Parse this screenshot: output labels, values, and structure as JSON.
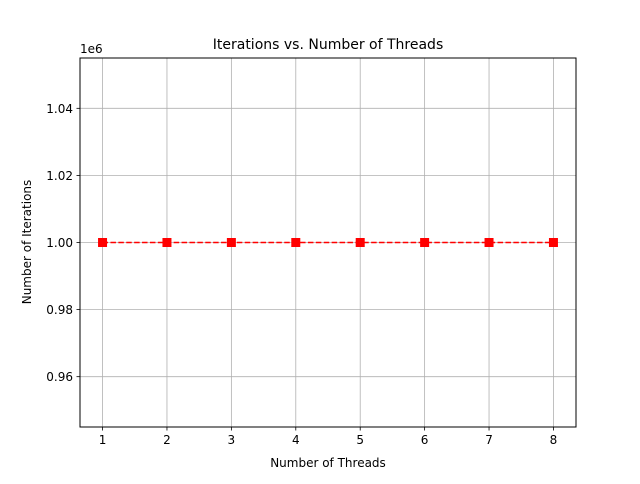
{
  "chart_data": {
    "type": "line",
    "title": "Iterations vs. Number of Threads",
    "xlabel": "Number of Threads",
    "ylabel": "Number of Iterations",
    "y_offset_label": "1e6",
    "x": [
      1,
      2,
      3,
      4,
      5,
      6,
      7,
      8
    ],
    "xlim": [
      0.65,
      8.35
    ],
    "ylim": [
      0.945,
      1.055
    ],
    "x_ticks": [
      1,
      2,
      3,
      4,
      5,
      6,
      7,
      8
    ],
    "y_ticks": [
      0.96,
      0.98,
      1.0,
      1.02,
      1.04
    ],
    "y_tick_labels": [
      "0.96",
      "0.98",
      "1.00",
      "1.02",
      "1.04"
    ],
    "grid": true,
    "series": [
      {
        "values": [
          1.0,
          1.0,
          1.0,
          1.0,
          1.0,
          1.0,
          1.0,
          1.0
        ],
        "color": "#ff0000",
        "line_style": "dashed",
        "marker": "square"
      }
    ]
  }
}
